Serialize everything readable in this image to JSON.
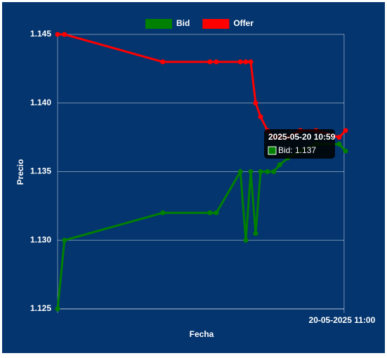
{
  "chart_data": {
    "type": "line",
    "x_label": "Fecha",
    "y_label": "Precio",
    "x": [
      601.7,
      603.1,
      623.1,
      632.7,
      634.0,
      638.9,
      640.0,
      641.0,
      642.0,
      643.0,
      644.4,
      645.7,
      646.9,
      648.6,
      651.1,
      654.3,
      659.0,
      660.3
    ],
    "series": [
      {
        "name": "Bid",
        "color": "#008000",
        "values": [
          1.125,
          1.13,
          1.132,
          1.132,
          1.132,
          1.135,
          1.13,
          1.135,
          1.1305,
          1.135,
          1.135,
          1.135,
          1.1355,
          1.136,
          1.1365,
          1.137,
          1.137,
          1.1365
        ]
      },
      {
        "name": "Offer",
        "color": "#ff0000",
        "values": [
          1.145,
          1.145,
          1.143,
          1.143,
          1.143,
          1.143,
          1.143,
          1.143,
          1.14,
          1.139,
          1.138,
          1.1375,
          1.1375,
          1.1375,
          1.138,
          1.138,
          1.1375,
          1.138
        ]
      }
    ],
    "xlim": [
      601.7,
      660.3
    ],
    "xticks": [
      {
        "value": 660,
        "label": "20-05-2025 11:00"
      }
    ],
    "ylim": [
      1.125,
      1.145
    ],
    "yticks": [
      1.125,
      {
        "value": 1.13,
        "label": "1.130"
      },
      1.135,
      {
        "value": 1.14,
        "label": "1.140"
      },
      1.145
    ],
    "grid": true,
    "legend": "top",
    "tooltip": {
      "title": "2025-05-20 10:59",
      "label": "Bid: 1.137",
      "series": 0,
      "index": 16
    }
  }
}
